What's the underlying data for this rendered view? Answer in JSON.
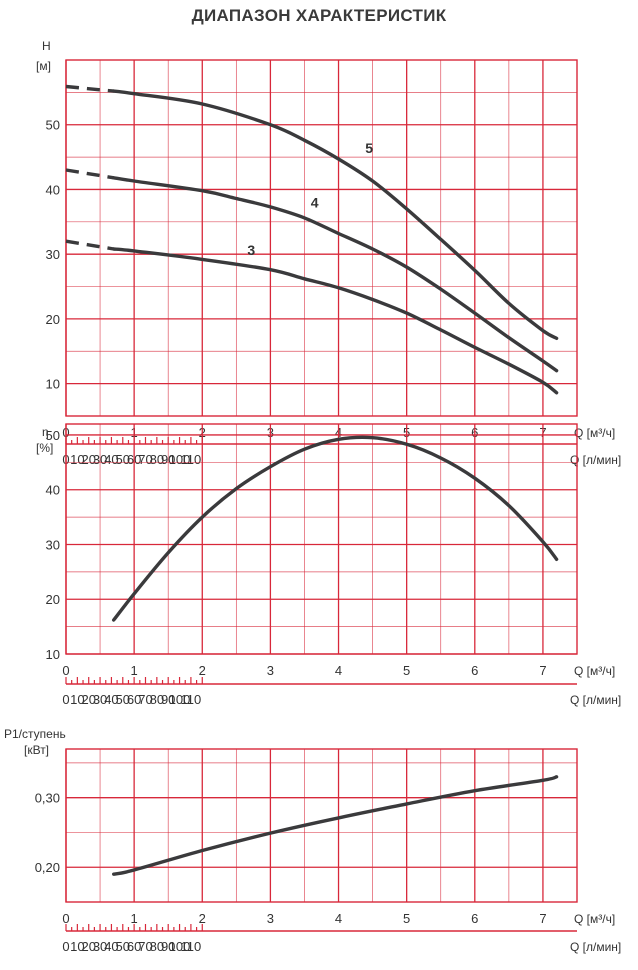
{
  "page_title": "ДИАПАЗОН ХАРАКТЕРИСТИК",
  "colors": {
    "grid": "#d8283a",
    "curve": "#3a3a3c",
    "text": "#333333"
  },
  "chart_data": [
    {
      "type": "line",
      "name": "head",
      "ylabel": "H",
      "yunit": "[м]",
      "xlabel": "Q [м³/ч]",
      "x2label": "Q [л/мин]",
      "xlim": [
        0,
        7.5
      ],
      "ylim": [
        5,
        60
      ],
      "xticks": [
        0,
        1,
        2,
        3,
        4,
        5,
        6,
        7
      ],
      "yticks": [
        10,
        20,
        30,
        40,
        50
      ],
      "x2ticks": [
        0,
        10,
        20,
        30,
        40,
        50,
        60,
        70,
        80,
        90,
        100,
        110
      ],
      "series": [
        {
          "name": "5",
          "dashed": [
            [
              0,
              55.9
            ],
            [
              0.7,
              55.2
            ]
          ],
          "points": [
            [
              0.7,
              55.2
            ],
            [
              1,
              54.8
            ],
            [
              2,
              53.2
            ],
            [
              3,
              50
            ],
            [
              3.5,
              47.6
            ],
            [
              4,
              44.7
            ],
            [
              4.5,
              41.3
            ],
            [
              5,
              37
            ],
            [
              5.5,
              32.3
            ],
            [
              6,
              27.5
            ],
            [
              6.5,
              22.4
            ],
            [
              7,
              18.2
            ],
            [
              7.2,
              17
            ]
          ],
          "label_at": [
            4.45,
            45.6
          ]
        },
        {
          "name": "4",
          "dashed": [
            [
              0,
              43
            ],
            [
              0.7,
              41.8
            ]
          ],
          "points": [
            [
              0.7,
              41.8
            ],
            [
              1,
              41.3
            ],
            [
              2,
              39.8
            ],
            [
              2.5,
              38.6
            ],
            [
              3,
              37.3
            ],
            [
              3.5,
              35.6
            ],
            [
              4,
              33.2
            ],
            [
              4.5,
              30.8
            ],
            [
              5,
              28
            ],
            [
              5.5,
              24.6
            ],
            [
              6,
              20.9
            ],
            [
              6.5,
              17.1
            ],
            [
              7,
              13.5
            ],
            [
              7.2,
              12
            ]
          ],
          "label_at": [
            3.65,
            37.2
          ]
        },
        {
          "name": "3",
          "dashed": [
            [
              0,
              32
            ],
            [
              0.7,
              30.8
            ]
          ],
          "points": [
            [
              0.7,
              30.8
            ],
            [
              1,
              30.5
            ],
            [
              2,
              29.2
            ],
            [
              3,
              27.6
            ],
            [
              3.5,
              26.2
            ],
            [
              4,
              24.8
            ],
            [
              4.5,
              23
            ],
            [
              5,
              20.9
            ],
            [
              5.5,
              18.3
            ],
            [
              6,
              15.6
            ],
            [
              6.5,
              13
            ],
            [
              7,
              10.2
            ],
            [
              7.2,
              8.6
            ]
          ],
          "label_at": [
            2.72,
            29.9
          ]
        }
      ]
    },
    {
      "type": "line",
      "name": "efficiency",
      "ylabel": "η",
      "yunit": "[%]",
      "xlabel": "Q [м³/ч]",
      "x2label": "Q [л/мин]",
      "xlim": [
        0,
        7.5
      ],
      "ylim": [
        10,
        52
      ],
      "xticks": [
        0,
        1,
        2,
        3,
        4,
        5,
        6,
        7
      ],
      "yticks": [
        10,
        20,
        30,
        40,
        50
      ],
      "x2ticks": [
        0,
        10,
        20,
        30,
        40,
        50,
        60,
        70,
        80,
        90,
        100,
        110
      ],
      "series": [
        {
          "name": "η",
          "points": [
            [
              0.7,
              16.2
            ],
            [
              1,
              21
            ],
            [
              1.5,
              28.5
            ],
            [
              2,
              35
            ],
            [
              2.5,
              40.2
            ],
            [
              3,
              44.2
            ],
            [
              3.5,
              47.4
            ],
            [
              4,
              49.2
            ],
            [
              4.5,
              49.5
            ],
            [
              5,
              48.3
            ],
            [
              5.5,
              45.8
            ],
            [
              6,
              42.1
            ],
            [
              6.5,
              37.1
            ],
            [
              7,
              30.5
            ],
            [
              7.2,
              27.3
            ]
          ]
        }
      ]
    },
    {
      "type": "line",
      "name": "power",
      "ylabel": "P1/ступень",
      "yunit": "[кВт]",
      "xlabel": "Q [м³/ч]",
      "x2label": "Q [л/мин]",
      "xlim": [
        0,
        7.5
      ],
      "ylim": [
        0.15,
        0.37
      ],
      "xticks": [
        0,
        1,
        2,
        3,
        4,
        5,
        6,
        7
      ],
      "yticks": [
        0.2,
        0.3
      ],
      "ytick_labels": [
        "0,20",
        "0,30"
      ],
      "x2ticks": [
        0,
        10,
        20,
        30,
        40,
        50,
        60,
        70,
        80,
        90,
        100,
        110
      ],
      "series": [
        {
          "name": "P1",
          "points": [
            [
              0.7,
              0.19
            ],
            [
              1,
              0.196
            ],
            [
              2,
              0.224
            ],
            [
              3,
              0.249
            ],
            [
              4,
              0.271
            ],
            [
              5,
              0.291
            ],
            [
              6,
              0.31
            ],
            [
              7,
              0.325
            ],
            [
              7.2,
              0.33
            ]
          ]
        }
      ]
    }
  ]
}
